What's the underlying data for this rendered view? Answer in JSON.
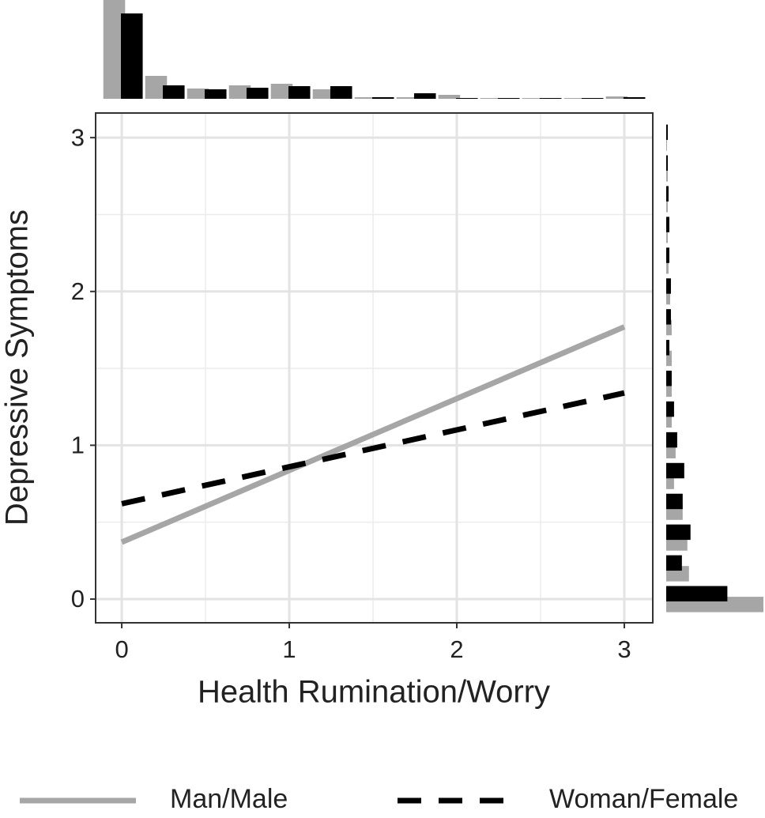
{
  "chart_data": {
    "type": "line",
    "x_label": "Health Rumination/Worry",
    "y_label": "Depressive Symptoms",
    "xlim": [
      -0.156,
      3.17
    ],
    "ylim": [
      -0.154,
      3.16
    ],
    "xticks": [
      0,
      1,
      2,
      3
    ],
    "yticks": [
      0,
      1,
      2,
      3
    ],
    "minor_xticks": [
      0.5,
      1.5,
      2.5
    ],
    "minor_yticks": [
      0.5,
      1.5,
      2.5
    ],
    "grid": true,
    "legend": "bottom",
    "series": [
      {
        "name": "Man/Male",
        "color": "#a6a6a6",
        "dash": "solid",
        "x": [
          0,
          3
        ],
        "values": [
          0.37,
          1.77
        ]
      },
      {
        "name": "Woman/Female",
        "color": "#000000",
        "dash": "dashed",
        "x": [
          0,
          3
        ],
        "values": [
          0.62,
          1.34
        ]
      }
    ],
    "top_histogram": {
      "x": [
        0,
        0.25,
        0.5,
        0.75,
        1,
        1.25,
        1.5,
        1.75,
        2,
        2.25,
        2.5,
        2.75,
        3
      ],
      "lim": [
        0,
        125
      ],
      "series": [
        {
          "color": "#a6a6a6",
          "values": [
            125,
            29,
            13,
            17,
            19,
            12,
            2,
            2,
            5,
            1,
            1,
            1,
            3
          ]
        },
        {
          "color": "#000000",
          "values": [
            108,
            17,
            12,
            14,
            16,
            16,
            2,
            7,
            1,
            1,
            1,
            1,
            2
          ]
        }
      ]
    },
    "right_histogram": {
      "y": [
        0,
        0.2,
        0.4,
        0.6,
        0.8,
        1,
        1.2,
        1.4,
        1.6,
        1.8,
        2,
        2.2,
        2.4,
        2.6,
        2.8,
        3
      ],
      "lim": [
        0,
        125
      ],
      "series": [
        {
          "color": "#a6a6a6",
          "values": [
            124,
            29,
            27,
            21,
            10,
            12,
            7,
            7,
            7,
            7,
            5,
            3,
            2,
            2,
            2,
            1
          ]
        },
        {
          "color": "#000000",
          "values": [
            78,
            20,
            31,
            21,
            23,
            14,
            10,
            7,
            4,
            6,
            6,
            4,
            4,
            3,
            2,
            2
          ]
        }
      ]
    }
  }
}
